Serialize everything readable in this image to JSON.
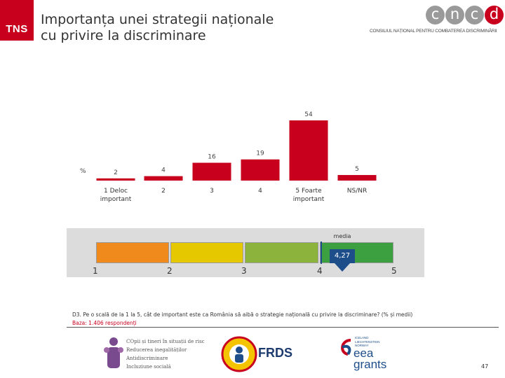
{
  "header": {
    "brand": "TNS",
    "title_line1": "Importanța unei strategii naționale",
    "title_line2": "cu privire la discriminare",
    "partner_letters": [
      "c",
      "n",
      "c",
      "d"
    ],
    "partner_name": "CONSILIUL NAȚIONAL PENTRU COMBATEREA DISCRIMINĂRII"
  },
  "chart_data": {
    "type": "bar",
    "unit_label": "%",
    "categories": [
      "1 Deloc important",
      "2",
      "3",
      "4",
      "5 Foarte important",
      "NS/NR"
    ],
    "category_labels": [
      [
        "1 Deloc",
        "important"
      ],
      [
        "2"
      ],
      [
        "3"
      ],
      [
        "4"
      ],
      [
        "5 Foarte",
        "important"
      ],
      [
        "NS/NR"
      ]
    ],
    "values": [
      2,
      4,
      16,
      19,
      54,
      5
    ],
    "colors": {
      "bar": "#c8001e"
    }
  },
  "scale": {
    "labels": [
      "1",
      "2",
      "3",
      "4",
      "5"
    ],
    "colors": [
      "#f08a1c",
      "#e6c800",
      "#8cb43c",
      "#3ca040"
    ],
    "mean_caption": "media",
    "mean_value": "4,27",
    "mean_numeric": 4.27,
    "marker_color": "#1d4e8a"
  },
  "footer": {
    "question": "D3. Pe o scală de la 1 la 5, cât de important este ca România să aibă o strategie națională cu privire la discriminare? (% și medii)",
    "base": "Baza: 1.406 respondenți",
    "page_number": "47",
    "logo1_lines": [
      "COpii și tineri în situații de risc",
      "Reducerea inegalităților",
      "Antidiscriminare",
      "Incluziune socială"
    ],
    "logo2_name": "FRDS",
    "logo3_countries": [
      "ICELAND",
      "LIECHTENSTEIN",
      "NORWAY"
    ],
    "logo3_name_1": "eea",
    "logo3_name_2": "grants"
  }
}
